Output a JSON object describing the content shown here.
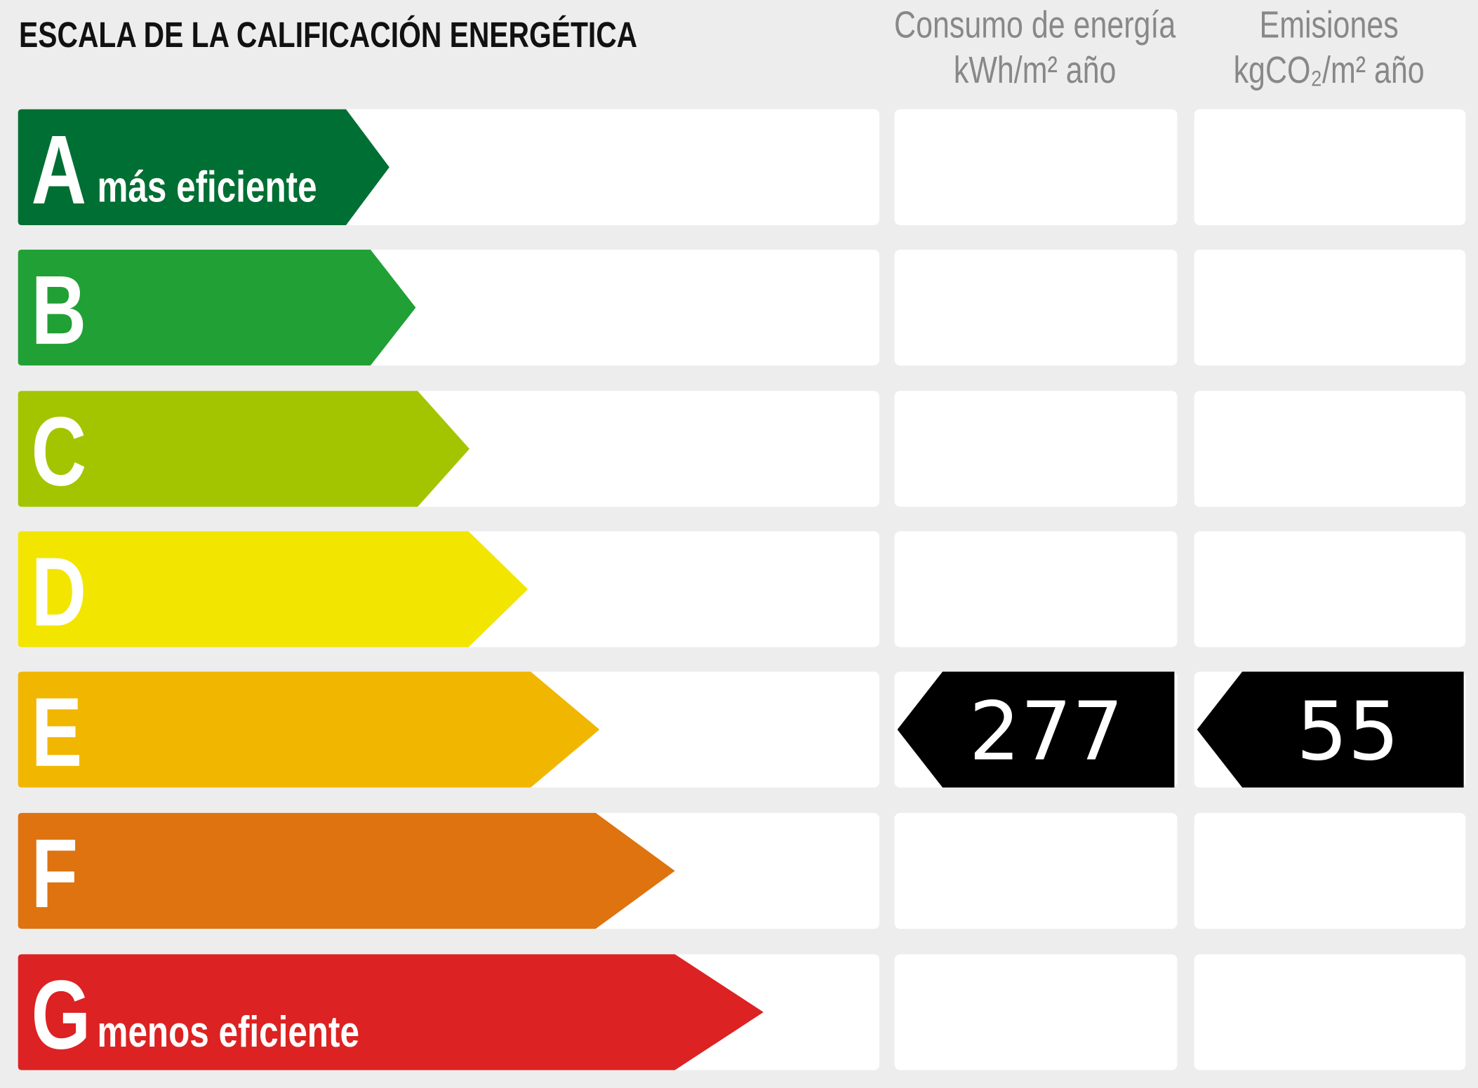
{
  "header": {
    "title": "ESCALA DE LA CALIFICACIÓN ENERGÉTICA",
    "consumption_heading": [
      "Consumo de energía",
      "kWh/m² año"
    ],
    "emissions_heading": [
      "Emisiones",
      "kgCO₂/m² año"
    ]
  },
  "scale": [
    {
      "letter": "A",
      "label": "más eficiente",
      "color": "#006f33"
    },
    {
      "letter": "B",
      "color": "#21a035"
    },
    {
      "letter": "C",
      "color": "#a3c500"
    },
    {
      "letter": "D",
      "color": "#f2e500"
    },
    {
      "letter": "E",
      "color": "#f1b700"
    },
    {
      "letter": "F",
      "color": "#de7310"
    },
    {
      "letter": "G",
      "label": "menos eficiente",
      "color": "#dc2222"
    }
  ],
  "consumption": {
    "class": "E",
    "value": 277
  },
  "emissions": {
    "class": "E",
    "value": 55
  }
}
